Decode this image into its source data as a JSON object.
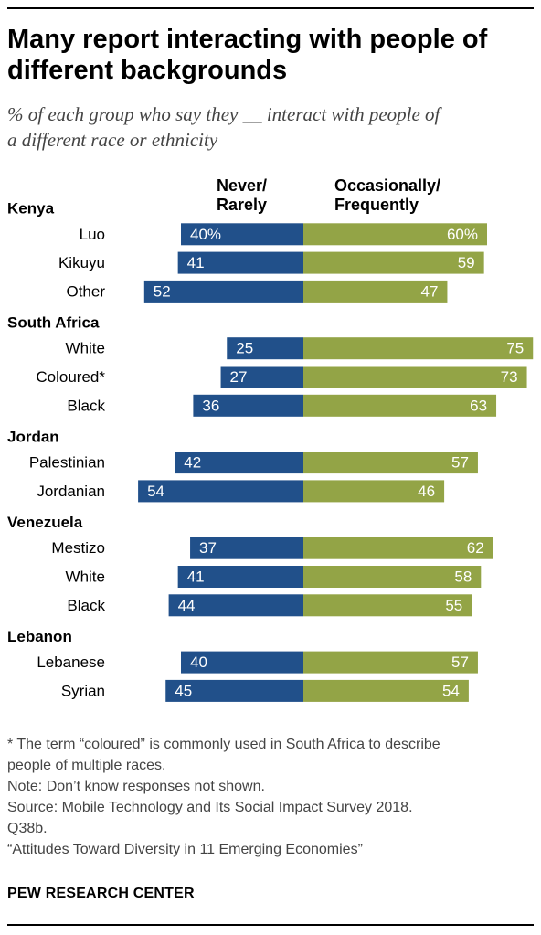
{
  "header": {
    "title_line1": "Many report interacting with people of",
    "title_line2": "different backgrounds",
    "subtitle_line1": "% of each group who say they __ interact with people of",
    "subtitle_line2": "a different race or ethnicity"
  },
  "colors": {
    "never": "#21508a",
    "occasionally": "#93a446"
  },
  "chart_data": {
    "type": "bar",
    "stacked": "diverging",
    "series_labels": {
      "never_line1": "Never/",
      "never_line2": "Rarely",
      "occ_line1": "Occasionally/",
      "occ_line2": "Frequently"
    },
    "groups": [
      {
        "name": "Kenya",
        "rows": [
          {
            "label": "Luo",
            "never": 40,
            "occasionally": 60,
            "never_text": "40%",
            "occ_text": "60%"
          },
          {
            "label": "Kikuyu",
            "never": 41,
            "occasionally": 59,
            "never_text": "41",
            "occ_text": "59"
          },
          {
            "label": "Other",
            "never": 52,
            "occasionally": 47,
            "never_text": "52",
            "occ_text": "47"
          }
        ]
      },
      {
        "name": "South Africa",
        "rows": [
          {
            "label": "White",
            "never": 25,
            "occasionally": 75,
            "never_text": "25",
            "occ_text": "75"
          },
          {
            "label": "Coloured*",
            "never": 27,
            "occasionally": 73,
            "never_text": "27",
            "occ_text": "73"
          },
          {
            "label": "Black",
            "never": 36,
            "occasionally": 63,
            "never_text": "36",
            "occ_text": "63"
          }
        ]
      },
      {
        "name": "Jordan",
        "rows": [
          {
            "label": "Palestinian",
            "never": 42,
            "occasionally": 57,
            "never_text": "42",
            "occ_text": "57"
          },
          {
            "label": "Jordanian",
            "never": 54,
            "occasionally": 46,
            "never_text": "54",
            "occ_text": "46"
          }
        ]
      },
      {
        "name": "Venezuela",
        "rows": [
          {
            "label": "Mestizo",
            "never": 37,
            "occasionally": 62,
            "never_text": "37",
            "occ_text": "62"
          },
          {
            "label": "White",
            "never": 41,
            "occasionally": 58,
            "never_text": "41",
            "occ_text": "58"
          },
          {
            "label": "Black",
            "never": 44,
            "occasionally": 55,
            "never_text": "44",
            "occ_text": "55"
          }
        ]
      },
      {
        "name": "Lebanon",
        "rows": [
          {
            "label": "Lebanese",
            "never": 40,
            "occasionally": 57,
            "never_text": "40",
            "occ_text": "57"
          },
          {
            "label": "Syrian",
            "never": 45,
            "occasionally": 54,
            "never_text": "45",
            "occ_text": "54"
          }
        ]
      }
    ]
  },
  "footer": {
    "footnote_line1": "* The term “coloured” is commonly used in South Africa to describe",
    "footnote_line2": "people of multiple races.",
    "note": "Note: Don’t know responses not shown.",
    "source_line1": "Source: Mobile Technology and Its Social Impact Survey 2018.",
    "source_line2": "Q38b.",
    "report": "“Attitudes Toward Diversity in 11 Emerging Economies”",
    "brand": "PEW RESEARCH CENTER"
  }
}
